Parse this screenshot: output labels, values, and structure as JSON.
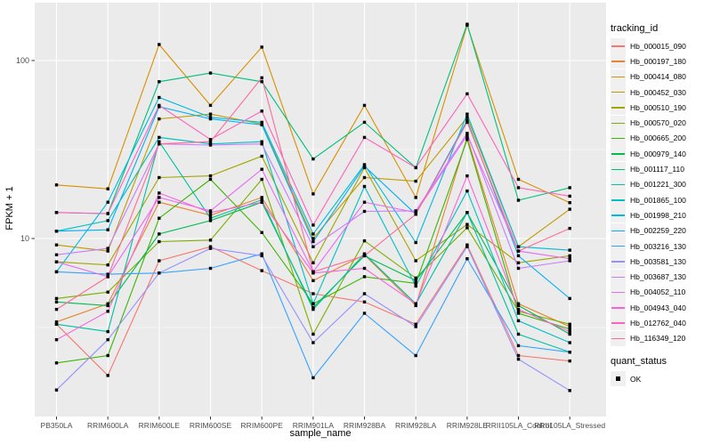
{
  "chart_data": {
    "type": "line",
    "title": "",
    "xlabel": "sample_name",
    "ylabel": "FPKM + 1",
    "y_scale": "log10",
    "y_axis_ticks": [
      "10",
      "100"
    ],
    "y_tick_values": [
      10,
      100
    ],
    "y_minor_values": [
      3.162,
      31.62
    ],
    "ylim": [
      1,
      211
    ],
    "grid": "white major/minor gridlines on grey panel",
    "legend_position": "right",
    "marker": "black-square",
    "panel_color": "#EBEBEB",
    "categories": [
      "PB350LA",
      "RRIM600LA",
      "RRIM600LE",
      "RRIM600SE",
      "RRIM600PE",
      "RRIM901LA",
      "RRIM928BA",
      "RRIM928LA",
      "RRIM928LE",
      "RRII105LA_Control",
      "RRII105LA_Stressed"
    ],
    "series": [
      {
        "name": "Hb_000015_090",
        "color": "#F8766D",
        "values": [
          3.3,
          1.7,
          7.5,
          9.0,
          6.6,
          4.9,
          4.4,
          3.3,
          9.2,
          2.2,
          2.05
        ]
      },
      {
        "name": "Hb_000197_180",
        "color": "#EA8331",
        "values": [
          3.4,
          4.3,
          16,
          13.5,
          17,
          5.8,
          8.1,
          4.2,
          37,
          4.3,
          3.2
        ]
      },
      {
        "name": "Hb_000414_080",
        "color": "#D89000",
        "values": [
          20,
          19,
          123,
          56,
          119,
          17.8,
          56,
          17,
          158,
          21.5,
          15.9
        ]
      },
      {
        "name": "Hb_000452_030",
        "color": "#C09B00",
        "values": [
          9.2,
          8.5,
          47,
          50,
          44,
          10,
          22,
          21,
          48,
          9.0,
          14.6
        ]
      },
      {
        "name": "Hb_000510_190",
        "color": "#A3A500",
        "values": [
          7.4,
          7.1,
          22,
          22.5,
          29,
          7.3,
          25,
          7.5,
          12,
          7.3,
          8.0
        ]
      },
      {
        "name": "Hb_000570_020",
        "color": "#7CAE00",
        "values": [
          4.6,
          5.0,
          9.6,
          9.8,
          21.5,
          2.9,
          9.7,
          6.0,
          11.5,
          3.9,
          3.3
        ]
      },
      {
        "name": "Hb_000665_200",
        "color": "#39B600",
        "values": [
          2.0,
          2.2,
          13,
          21.5,
          10.8,
          4.3,
          6.1,
          5.6,
          36,
          3.8,
          3.1
        ]
      },
      {
        "name": "Hb_000979_140",
        "color": "#00BB4E",
        "values": [
          4.4,
          4.2,
          10.6,
          12.6,
          16,
          4.1,
          8.0,
          5.8,
          14,
          4.2,
          2.9
        ]
      },
      {
        "name": "Hb_001117_110",
        "color": "#00BF7D",
        "values": [
          14,
          13.8,
          76,
          85,
          76,
          28,
          45,
          25,
          160,
          16.4,
          19.3
        ]
      },
      {
        "name": "Hb_001221_300",
        "color": "#00C1A3",
        "values": [
          3.3,
          3.0,
          35,
          13,
          16.5,
          4.0,
          8.2,
          4.3,
          14,
          2.9,
          2.3
        ]
      },
      {
        "name": "Hb_001865_100",
        "color": "#00BFC4",
        "values": [
          11,
          12.6,
          37,
          34,
          35,
          4.3,
          19.6,
          5.4,
          18.5,
          3.45,
          2.6
        ]
      },
      {
        "name": "Hb_001998_210",
        "color": "#00BAE0",
        "values": [
          6.5,
          16,
          62,
          48,
          45,
          10.6,
          26,
          9.5,
          50,
          9.0,
          8.6
        ]
      },
      {
        "name": "Hb_002259_220",
        "color": "#00B0F6",
        "values": [
          11,
          11.2,
          55,
          47,
          43.5,
          9.6,
          25.5,
          13.7,
          46,
          8.0,
          4.6
        ]
      },
      {
        "name": "Hb_003216_130",
        "color": "#35A2FF",
        "values": [
          6.5,
          6.3,
          6.4,
          6.8,
          8.2,
          1.65,
          3.8,
          2.2,
          7.7,
          2.5,
          2.3
        ]
      },
      {
        "name": "Hb_003581_130",
        "color": "#9590FF",
        "values": [
          1.41,
          2.7,
          6.4,
          8.8,
          8.0,
          2.6,
          4.9,
          3.2,
          9.0,
          2.1,
          1.4
        ]
      },
      {
        "name": "Hb_003687_130",
        "color": "#C77CFF",
        "values": [
          8.1,
          8.8,
          34,
          33.5,
          34,
          9.0,
          14.2,
          14.3,
          39,
          6.8,
          7.5
        ]
      },
      {
        "name": "Hb_004052_110",
        "color": "#E76BF3",
        "values": [
          7.4,
          6.1,
          17,
          14.3,
          24.5,
          6.5,
          16,
          14,
          38,
          8.5,
          7.7
        ]
      },
      {
        "name": "Hb_004943_040",
        "color": "#FA62DB",
        "values": [
          2.7,
          3.9,
          18,
          14,
          16,
          6.4,
          6.8,
          4.3,
          22.5,
          4.0,
          3.0
        ]
      },
      {
        "name": "Hb_012762_040",
        "color": "#FF62BC",
        "values": [
          14,
          13.8,
          56,
          36,
          52,
          11.9,
          37,
          25,
          65,
          19.3,
          17.3
        ]
      },
      {
        "name": "Hb_116349_120",
        "color": "#FF6A98",
        "values": [
          4.0,
          6.1,
          34,
          35,
          80,
          6.5,
          8.0,
          13.7,
          45,
          8.5,
          11.4
        ]
      }
    ],
    "legend": {
      "series_title": "tracking_id",
      "shape_title": "quant_status",
      "shape_label": "OK"
    }
  }
}
